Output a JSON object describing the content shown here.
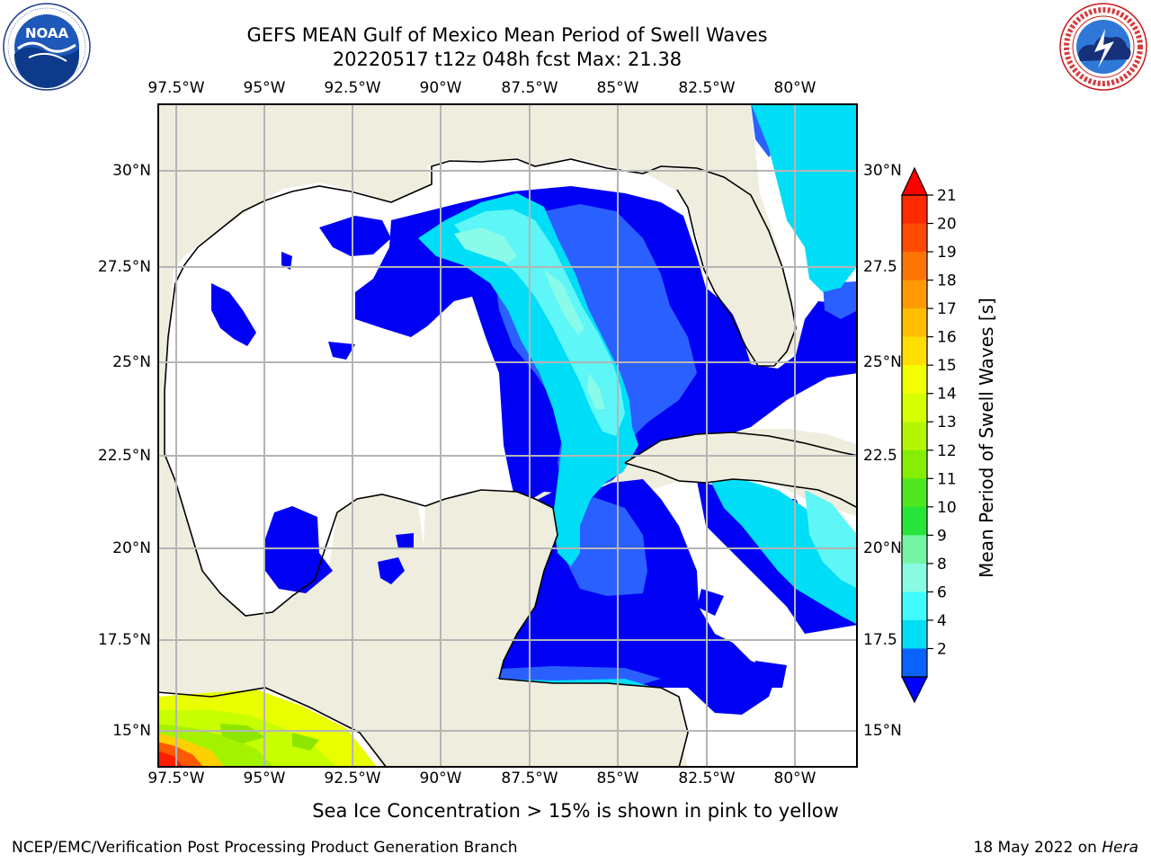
{
  "title_line1": "GEFS MEAN Gulf of Mexico Mean Period of Swell Waves",
  "title_line2": "20220517 t12z 048h fcst   Max: 21.38",
  "logos": {
    "left": "NOAA",
    "left_ring_text": "NATIONAL OCEANIC AND ATMOSPHERIC ADMINISTRATION · U.S. DEPARTMENT OF COMMERCE",
    "right_ring_text": "NATIONAL WEATHER SERVICE"
  },
  "map": {
    "lon_labels": [
      "97.5°W",
      "95°W",
      "92.5°W",
      "90°W",
      "87.5°W",
      "85°W",
      "82.5°W",
      "80°W"
    ],
    "lat_labels_left": [
      "30°N",
      "27.5°N",
      "25°N",
      "22.5°N",
      "20°N",
      "17.5°N",
      "15°N"
    ],
    "lat_labels_right": [
      "30°N",
      "27.5",
      "25°N",
      "22.5",
      "20°N",
      "17.5",
      "15°N"
    ],
    "lon_range": [
      -98.0,
      -78.25
    ],
    "lat_range": [
      14.0,
      31.8
    ],
    "gridlines": true,
    "colors": {
      "land": "#efedde",
      "ocean_no_data": "#ffffff",
      "grid": "#b5b5b5",
      "coast": "#000000"
    }
  },
  "colorbar": {
    "label": "Mean Period of Swell Waves [s]",
    "ticks": [
      "21",
      "20",
      "19",
      "18",
      "17",
      "16",
      "15",
      "14",
      "13",
      "12",
      "11",
      "10",
      "9",
      "8",
      "6",
      "4",
      "2"
    ],
    "colors": [
      "#ff2a00",
      "#ff4a00",
      "#ff7400",
      "#ff9a00",
      "#ffbe00",
      "#ffdd00",
      "#f3ff00",
      "#d6ff00",
      "#b4f600",
      "#86ee00",
      "#4fe51c",
      "#26e53a",
      "#73f5a4",
      "#88fbe2",
      "#3ffbfb",
      "#00def6",
      "#0a62ff"
    ],
    "top_extend_color": "#ff0000",
    "bottom_extend_color": "#0000ff"
  },
  "caption": "Sea Ice Concentration > 15% is shown in pink to yellow",
  "footer_left": "NCEP/EMC/Verification Post Processing Product Generation Branch",
  "footer_right_prefix": "18 May 2022 on ",
  "footer_right_host": "Hera"
}
